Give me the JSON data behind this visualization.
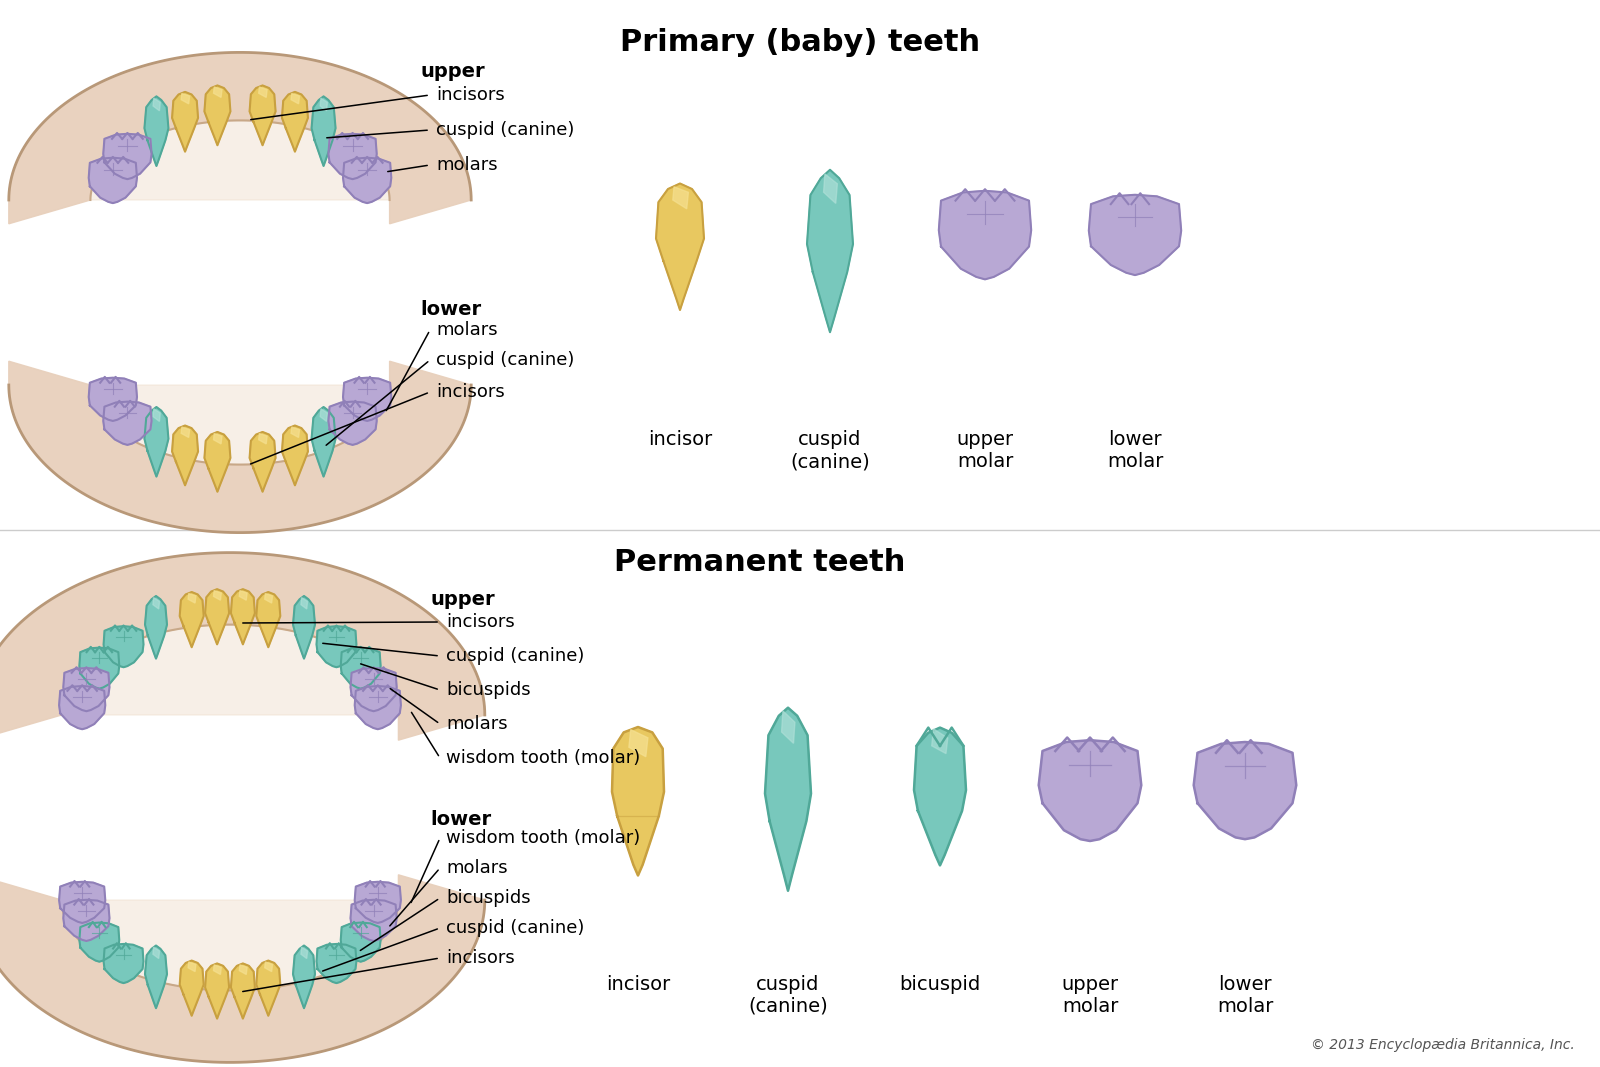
{
  "title_primary": "Primary (baby) teeth",
  "title_permanent": "Permanent teeth",
  "copyright": "© 2013 Encyclopædia Britannica, Inc.",
  "bg_color": "#ffffff",
  "title_fontsize": 22,
  "label_fontsize": 13,
  "bold_label_fontsize": 14,
  "color_incisor_border": "#C8A040",
  "color_incisor_fill": "#E8C860",
  "color_incisor_light": "#F5E090",
  "color_cuspid_border": "#50A898",
  "color_cuspid_fill": "#78C8BC",
  "color_cuspid_light": "#B0E0D8",
  "color_molar_border": "#9080B8",
  "color_molar_fill": "#B8A8D4",
  "color_molar_light": "#D8CCEC",
  "color_jaw_fill": "#E8D0BC",
  "color_jaw_inner": "#D4B898",
  "color_jaw_border": "#B89878",
  "color_gum_dark": "#C8A888"
}
